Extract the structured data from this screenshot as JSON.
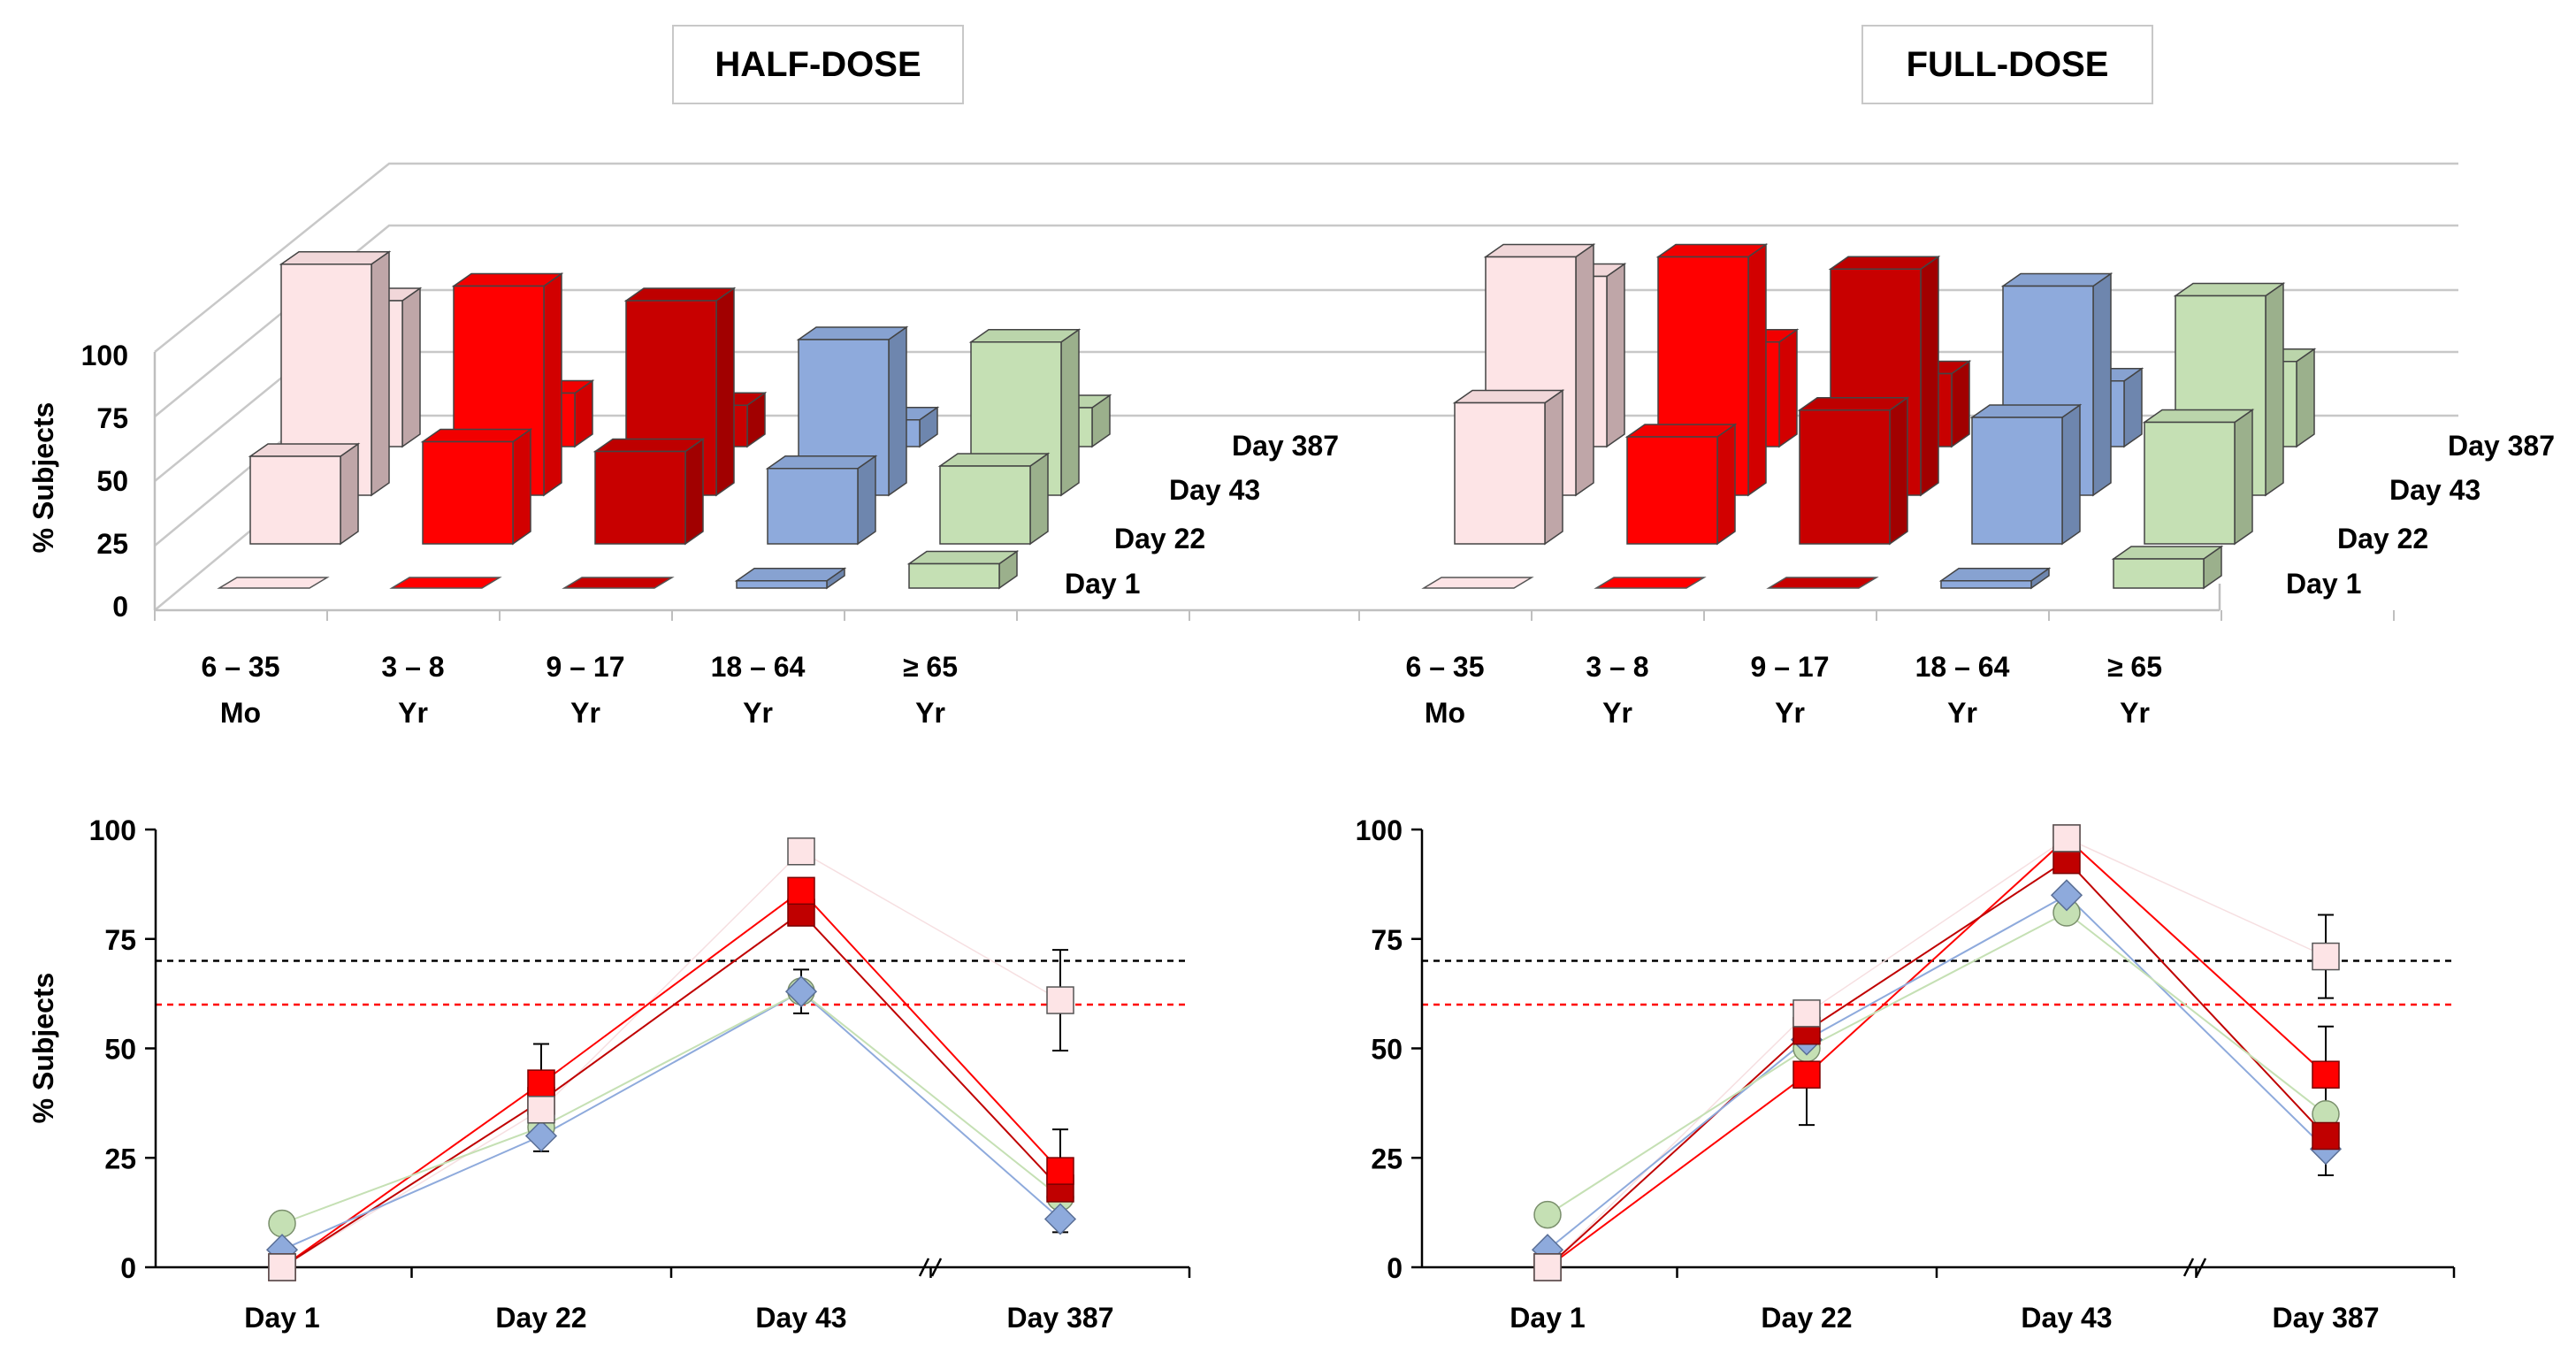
{
  "chart_data": [
    {
      "type": "bar3d",
      "title": "HALF-DOSE",
      "ylabel": "% Subjects",
      "ylim": [
        0,
        100
      ],
      "yticks": [
        0,
        25,
        50,
        75,
        100
      ],
      "categories": [
        {
          "line1": "6 – 35",
          "line2": "Mo"
        },
        {
          "line1": "3 – 8",
          "line2": "Yr"
        },
        {
          "line1": "9 – 17",
          "line2": "Yr"
        },
        {
          "line1": "18 – 64",
          "line2": "Yr"
        },
        {
          "line1": "≥ 65",
          "line2": "Yr"
        }
      ],
      "series": [
        {
          "name": "Day 1",
          "values": [
            0,
            0,
            0,
            3,
            10
          ]
        },
        {
          "name": "Day 22",
          "values": [
            36,
            42,
            38,
            31,
            32
          ]
        },
        {
          "name": "Day 43",
          "values": [
            95,
            86,
            80,
            64,
            63
          ]
        },
        {
          "name": "Day 387",
          "values": [
            60,
            22,
            17,
            11,
            16
          ]
        }
      ]
    },
    {
      "type": "bar3d",
      "title": "FULL-DOSE",
      "ylabel": "% Subjects",
      "ylim": [
        0,
        100
      ],
      "yticks": [
        0,
        25,
        50,
        75,
        100
      ],
      "categories": [
        {
          "line1": "6 – 35",
          "line2": "Mo"
        },
        {
          "line1": "3 – 8",
          "line2": "Yr"
        },
        {
          "line1": "9 – 17",
          "line2": "Yr"
        },
        {
          "line1": "18 – 64",
          "line2": "Yr"
        },
        {
          "line1": "≥ 65",
          "line2": "Yr"
        }
      ],
      "series": [
        {
          "name": "Day 1",
          "values": [
            0,
            0,
            0,
            3,
            12
          ]
        },
        {
          "name": "Day 22",
          "values": [
            58,
            44,
            55,
            52,
            50
          ]
        },
        {
          "name": "Day 43",
          "values": [
            98,
            98,
            93,
            86,
            82
          ]
        },
        {
          "name": "Day 387",
          "values": [
            70,
            43,
            30,
            27,
            35
          ]
        }
      ]
    },
    {
      "type": "line",
      "title": "HALF-DOSE",
      "ylabel": "% Subjects",
      "ylim": [
        0,
        100
      ],
      "yticks": [
        0,
        25,
        50,
        75,
        100
      ],
      "categories": [
        "Day 1",
        "Day 22",
        "Day 43",
        "Day 387"
      ],
      "reference_lines": [
        70,
        60
      ],
      "series": [
        {
          "name": "6 – 35 Mo",
          "values": [
            0,
            36,
            95,
            61
          ],
          "err": [
            0,
            0,
            0,
            11.5
          ]
        },
        {
          "name": "3 – 8 Yr",
          "values": [
            0,
            42,
            86,
            22
          ],
          "err": [
            0,
            9,
            0,
            9.5
          ]
        },
        {
          "name": "9 – 17 Yr",
          "values": [
            0,
            38,
            81,
            18
          ],
          "err": [
            0,
            0,
            0,
            0
          ]
        },
        {
          "name": "18 – 64 Yr",
          "values": [
            4,
            30,
            63,
            11
          ],
          "err": [
            0,
            3.5,
            5,
            3
          ]
        },
        {
          "name": "≥ 65 Yr",
          "values": [
            10,
            32,
            63,
            16
          ],
          "err": [
            0,
            0,
            0,
            0
          ]
        }
      ]
    },
    {
      "type": "line",
      "title": "FULL-DOSE",
      "ylabel": "",
      "ylim": [
        0,
        100
      ],
      "yticks": [
        0,
        25,
        50,
        75,
        100
      ],
      "categories": [
        "Day 1",
        "Day 22",
        "Day 43",
        "Day 387"
      ],
      "reference_lines": [
        70,
        60
      ],
      "series": [
        {
          "name": "6 – 35 Mo",
          "values": [
            0,
            58,
            98,
            71
          ],
          "err": [
            0,
            0,
            0,
            9.5
          ]
        },
        {
          "name": "3 – 8 Yr",
          "values": [
            0,
            44,
            98,
            44
          ],
          "err": [
            0,
            11.5,
            0,
            11
          ]
        },
        {
          "name": "9 – 17 Yr",
          "values": [
            0,
            54,
            93,
            30
          ],
          "err": [
            0,
            0,
            0,
            0
          ]
        },
        {
          "name": "18 – 64 Yr",
          "values": [
            4,
            52,
            85,
            27
          ],
          "err": [
            0,
            8,
            0,
            6
          ]
        },
        {
          "name": "≥ 65 Yr",
          "values": [
            12,
            50,
            81,
            35
          ],
          "err": [
            0,
            0,
            0,
            0
          ]
        }
      ]
    }
  ],
  "palette": {
    "front": [
      "#fde4e6",
      "#ff0000",
      "#c80000",
      "#8eaadc",
      "#c5e0b4"
    ],
    "top": [
      "#f1d7d9",
      "#f20000",
      "#be0000",
      "#87a2d1",
      "#bbd5ab"
    ],
    "side": [
      "#bfa6a8",
      "#d20000",
      "#a10000",
      "#6e86ae",
      "#9bb08c"
    ],
    "line": [
      "#f6dfe1",
      "#ff0000",
      "#c00000",
      "#8eaadc",
      "#c5e0b4"
    ],
    "ref_black": "#000000",
    "ref_red": "#ff0000"
  }
}
